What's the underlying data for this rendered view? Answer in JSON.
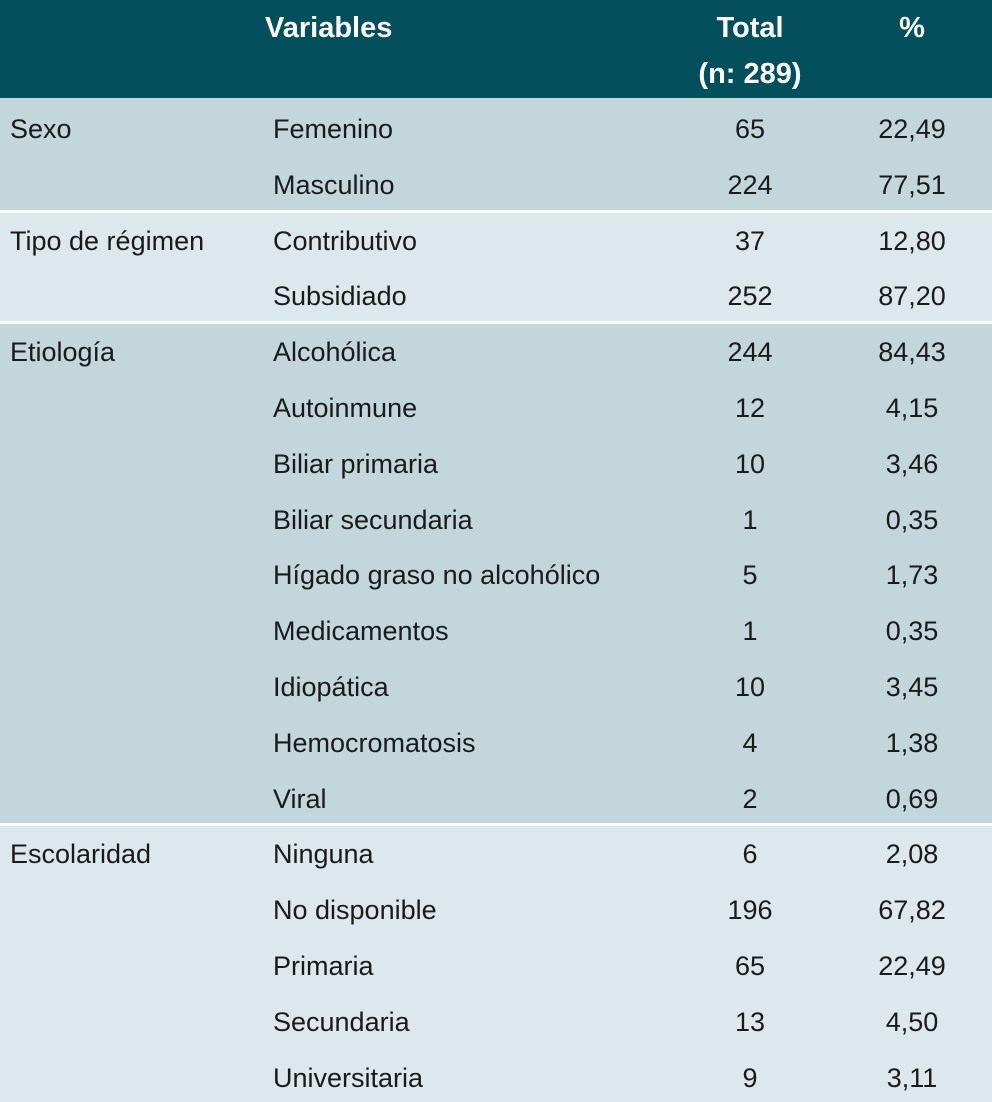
{
  "header": {
    "variables": "Variables",
    "total_line1": "Total",
    "total_line2": "(n: 289)",
    "percent": "%"
  },
  "groups": [
    {
      "label": "Sexo",
      "rows": [
        [
          "Femenino",
          65,
          "22,49"
        ],
        [
          "Masculino",
          224,
          "77,51"
        ]
      ]
    },
    {
      "label": "Tipo de régimen",
      "rows": [
        [
          "Contributivo",
          37,
          "12,80"
        ],
        [
          "Subsidiado",
          252,
          "87,20"
        ]
      ]
    },
    {
      "label": "Etiología",
      "rows": [
        [
          "Alcohólica",
          244,
          "84,43"
        ],
        [
          "Autoinmune",
          12,
          "4,15"
        ],
        [
          "Biliar primaria",
          10,
          "3,46"
        ],
        [
          "Biliar secundaria",
          1,
          "0,35"
        ],
        [
          "Hígado graso no alcohólico",
          5,
          "1,73"
        ],
        [
          "Medicamentos",
          1,
          "0,35"
        ],
        [
          "Idiopática",
          10,
          "3,45"
        ],
        [
          "Hemocromatosis",
          4,
          "1,38"
        ],
        [
          "Viral",
          2,
          "0,69"
        ]
      ]
    },
    {
      "label": "Escolaridad",
      "rows": [
        [
          "Ninguna",
          6,
          "2,08"
        ],
        [
          "No disponible",
          196,
          "67,82"
        ],
        [
          "Primaria",
          65,
          "22,49"
        ],
        [
          "Secundaria",
          13,
          "4,50"
        ],
        [
          "Universitaria",
          9,
          "3,11"
        ]
      ]
    }
  ]
}
